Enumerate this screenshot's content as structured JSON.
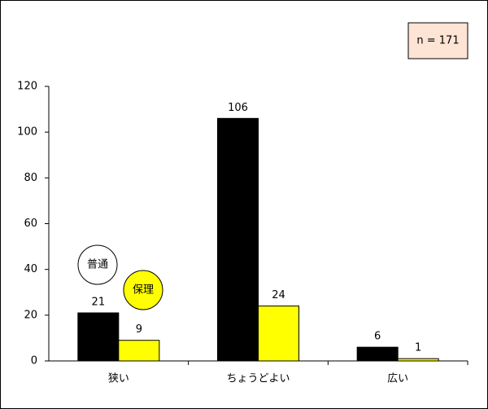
{
  "chart_data": {
    "type": "bar",
    "annotation": "n = 171",
    "categories": [
      "狭い",
      "ちょうどよい",
      "広い"
    ],
    "series": [
      {
        "name": "普通",
        "color": "#000000",
        "values": [
          21,
          106,
          6
        ]
      },
      {
        "name": "保理",
        "color": "#ffff00",
        "values": [
          9,
          24,
          1
        ]
      }
    ],
    "ylim": [
      0,
      120
    ],
    "yticks": [
      0,
      20,
      40,
      60,
      80,
      100,
      120
    ],
    "grid": false
  }
}
